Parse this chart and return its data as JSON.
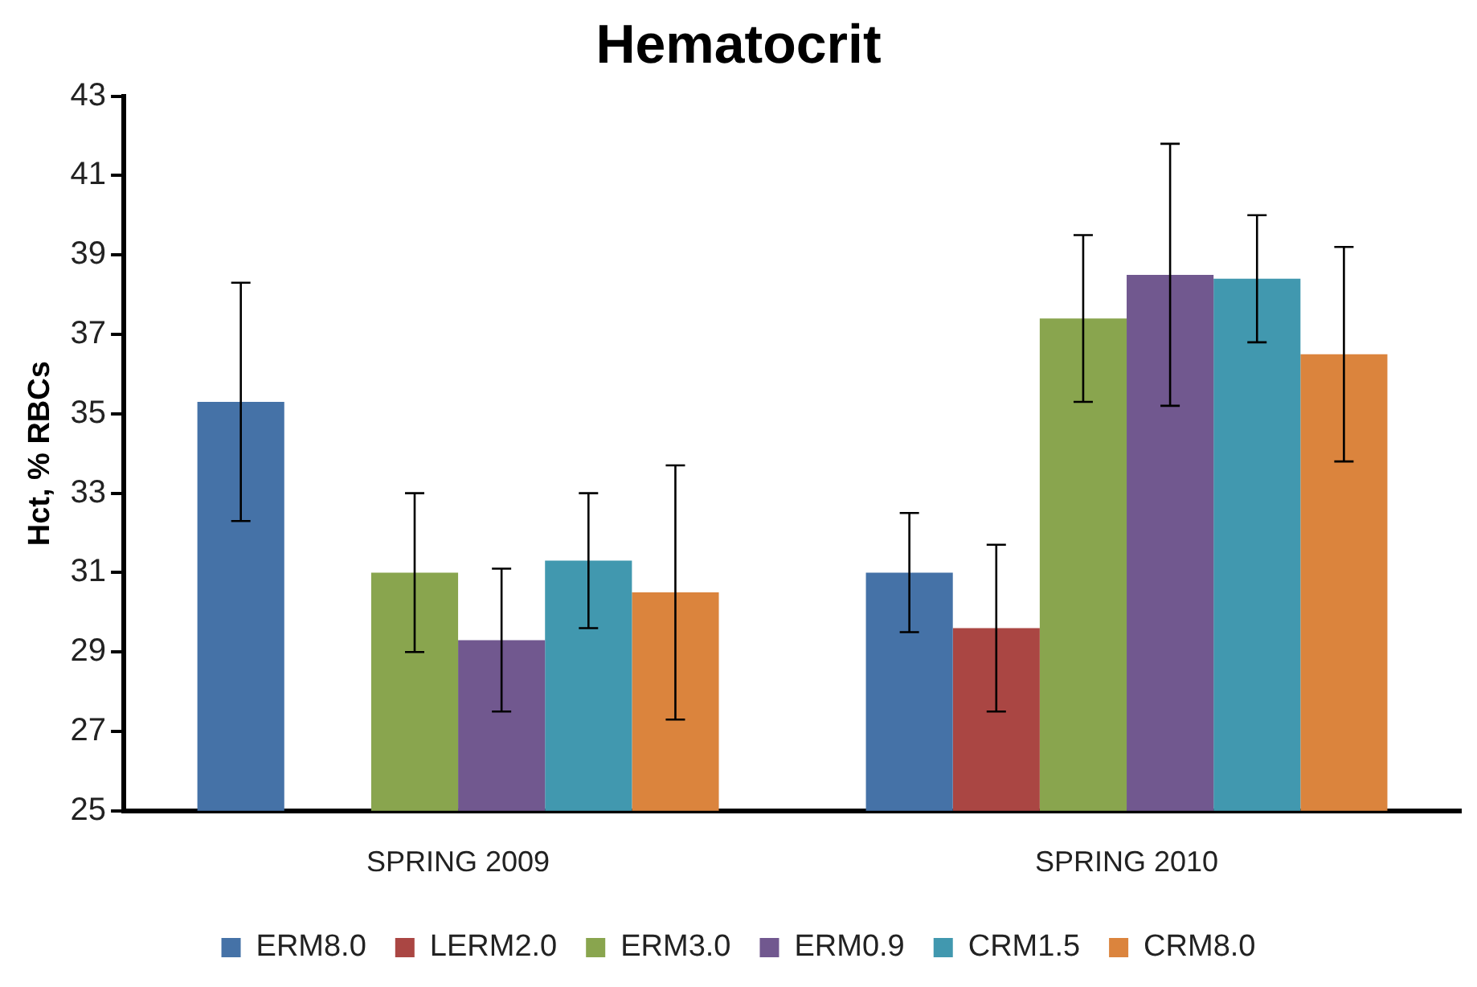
{
  "chart_data": {
    "type": "bar",
    "title": "Hematocrit",
    "ylabel": "Hct, % RBCs",
    "categories": [
      "SPRING 2009",
      "SPRING 2010"
    ],
    "series": [
      {
        "name": "ERM8.0",
        "color": "#4572a7",
        "values": [
          35.3,
          31.0
        ],
        "errors": [
          [
            32.3,
            38.3
          ],
          [
            29.5,
            32.5
          ]
        ]
      },
      {
        "name": "LERM2.0",
        "color": "#aa4643",
        "values": [
          null,
          29.6
        ],
        "errors": [
          null,
          [
            27.5,
            31.7
          ]
        ]
      },
      {
        "name": "ERM3.0",
        "color": "#89a54e",
        "values": [
          31.0,
          37.4
        ],
        "errors": [
          [
            29.0,
            33.0
          ],
          [
            35.3,
            39.5
          ]
        ]
      },
      {
        "name": "ERM0.9",
        "color": "#71588f",
        "values": [
          29.3,
          38.5
        ],
        "errors": [
          [
            27.5,
            31.1
          ],
          [
            35.2,
            41.8
          ]
        ]
      },
      {
        "name": "CRM1.5",
        "color": "#4198af",
        "values": [
          31.3,
          38.4
        ],
        "errors": [
          [
            29.6,
            33.0
          ],
          [
            36.8,
            40.0
          ]
        ]
      },
      {
        "name": "CRM8.0",
        "color": "#db843d",
        "values": [
          30.5,
          36.5
        ],
        "errors": [
          [
            27.3,
            33.7
          ],
          [
            33.8,
            39.2
          ]
        ]
      }
    ],
    "ylim": [
      25,
      43
    ],
    "yticks": [
      25,
      27,
      29,
      31,
      33,
      35,
      37,
      39,
      41,
      43
    ],
    "grid": false,
    "legend": "bottom"
  }
}
